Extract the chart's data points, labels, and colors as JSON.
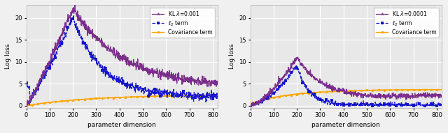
{
  "left": {
    "xlabel": "parameter dimension",
    "ylabel": "Log loss",
    "xlim": [
      0,
      820
    ],
    "ylim": [
      -0.5,
      23
    ],
    "yticks": [
      0,
      5,
      10,
      15,
      20
    ],
    "xticks": [
      0,
      100,
      200,
      300,
      400,
      500,
      600,
      700,
      800
    ],
    "legend_kl": "KL $\\lambda$=0.001",
    "legend_l2": "$\\ell_2$ term",
    "legend_cov": "Covariance term"
  },
  "right": {
    "xlabel": "parameter dimension",
    "ylabel": "Log loss",
    "xlim": [
      0,
      820
    ],
    "ylim": [
      -0.5,
      23
    ],
    "yticks": [
      0,
      5,
      10,
      15,
      20
    ],
    "xticks": [
      0,
      100,
      200,
      300,
      400,
      500,
      600,
      700,
      800
    ],
    "legend_kl": "KL $\\lambda$=0.0001",
    "legend_l2": "$\\ell_2$ term",
    "legend_cov": "Covariance term"
  },
  "colors": {
    "kl": "#7B2D8B",
    "l2": "#1515CC",
    "cov": "#FFA500"
  },
  "bg_color": "#E8E8E8",
  "fig_bg": "#F0F0F0",
  "grid_color": "white",
  "peak_dim": 200,
  "n_points": 820
}
